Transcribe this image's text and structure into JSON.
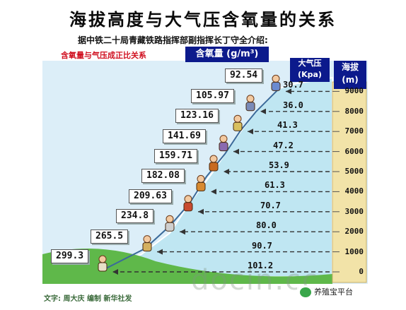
{
  "title": "海拔高度与大气压含氧量的关系",
  "subtitle": "据中铁二十局青藏铁路指挥部副指挥长丁守全介绍:",
  "note": "含氧量与气压成正比关系",
  "headers": {
    "oxygen": "含氧量 (g/m³)",
    "pressure_line1": "大气压",
    "pressure_line2": "(Kpa)",
    "altitude_line1": "海拔",
    "altitude_line2": "(m)"
  },
  "levels": [
    {
      "altitude": "0",
      "pressure": "101.2",
      "oxygen": "299.3"
    },
    {
      "altitude": "1000",
      "pressure": "90.7",
      "oxygen": "265.5"
    },
    {
      "altitude": "2000",
      "pressure": "80.0",
      "oxygen": "234.8"
    },
    {
      "altitude": "3000",
      "pressure": "70.7",
      "oxygen": "209.63"
    },
    {
      "altitude": "4000",
      "pressure": "61.3",
      "oxygen": "182.08"
    },
    {
      "altitude": "5000",
      "pressure": "53.9",
      "oxygen": "159.71"
    },
    {
      "altitude": "6000",
      "pressure": "47.2",
      "oxygen": "141.69"
    },
    {
      "altitude": "7000",
      "pressure": "41.3",
      "oxygen": "123.16"
    },
    {
      "altitude": "8000",
      "pressure": "36.0",
      "oxygen": "105.97"
    },
    {
      "altitude": "9000",
      "pressure": "30.7",
      "oxygen": "92.54"
    }
  ],
  "footer": "文字: 周大庆 编制 新华社发",
  "watermark": "docin.cc",
  "badge": "养殖宝平台",
  "colors": {
    "header_blue": "#0c1a8c",
    "sky": "#cfe8f6",
    "mountain": "#bfe6f2",
    "grass": "#5fb84a",
    "ruler": "#f2e3a8",
    "note_red": "#d01020"
  }
}
